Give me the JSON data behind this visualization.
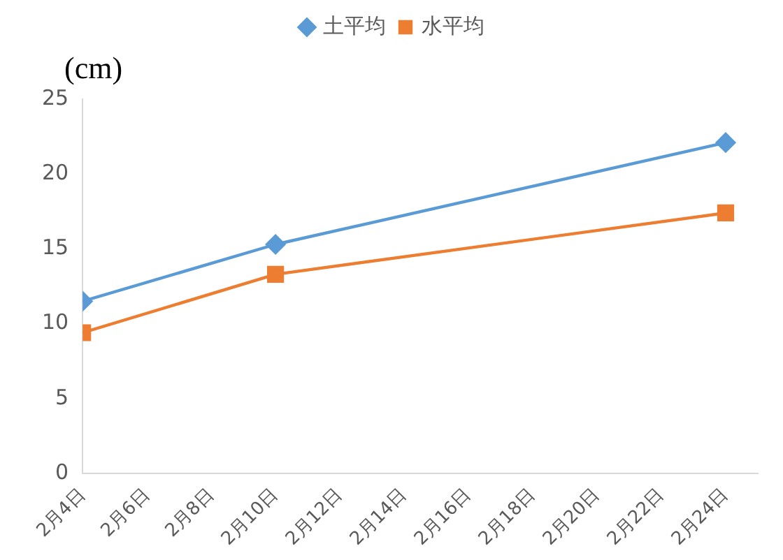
{
  "chart_data": {
    "type": "line",
    "ylabel": "(cm)",
    "x": [
      "--02-04",
      "--02-10",
      "--02-24"
    ],
    "series": [
      {
        "name": "土平均",
        "color": "#5b9bd5",
        "marker": "diamond",
        "values": [
          11.5,
          15.3,
          22.1
        ]
      },
      {
        "name": "水平均",
        "color": "#ed7d31",
        "marker": "square",
        "values": [
          9.4,
          13.3,
          17.4
        ]
      }
    ],
    "xlim": [
      "--02-04",
      "--02-25"
    ],
    "xticks": [
      {
        "value": "--02-04",
        "label": "2月4日"
      },
      {
        "value": "--02-06",
        "label": "2月6日"
      },
      {
        "value": "--02-08",
        "label": "2月8日"
      },
      {
        "value": "--02-10",
        "label": "2月10日"
      },
      {
        "value": "--02-12",
        "label": "2月12日"
      },
      {
        "value": "--02-14",
        "label": "2月14日"
      },
      {
        "value": "--02-16",
        "label": "2月16日"
      },
      {
        "value": "--02-18",
        "label": "2月18日"
      },
      {
        "value": "--02-20",
        "label": "2月20日"
      },
      {
        "value": "--02-22",
        "label": "2月22日"
      },
      {
        "value": "--02-24",
        "label": "2月24日"
      }
    ],
    "ylim": [
      0,
      25
    ],
    "yticks": [
      0,
      5,
      10,
      15,
      20,
      25
    ],
    "grid": false,
    "legend": "top",
    "line_style": "solid"
  }
}
